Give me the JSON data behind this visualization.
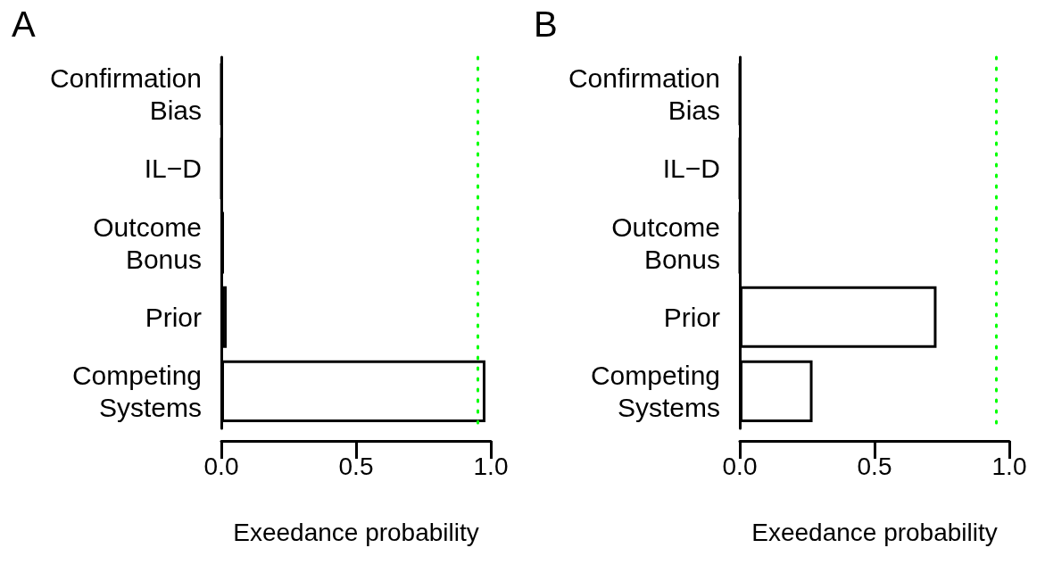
{
  "chart_data": [
    {
      "type": "bar",
      "title": "A",
      "orientation": "horizontal",
      "categories": [
        "Confirmation Bias",
        "IL−D",
        "Outcome Bonus",
        "Prior",
        "Competing Systems"
      ],
      "values": [
        0,
        0,
        0.01,
        0.02,
        0.98
      ],
      "color": "#ffffff",
      "xlabel": "Exeedance probability",
      "xlim": [
        0,
        1
      ],
      "xticks": [
        {
          "value": 0,
          "label": "0.0"
        },
        {
          "value": 0.5,
          "label": "0.5"
        },
        {
          "value": 1,
          "label": "1.0"
        }
      ],
      "ref_lines": [
        {
          "axis": "x",
          "value": 0.95,
          "color": "#00ff00",
          "line_style": "dotted"
        }
      ]
    },
    {
      "type": "bar",
      "title": "B",
      "orientation": "horizontal",
      "categories": [
        "Confirmation Bias",
        "IL−D",
        "Outcome Bonus",
        "Prior",
        "Competing Systems"
      ],
      "values": [
        0,
        0,
        0,
        0.73,
        0.27
      ],
      "color": "#ffffff",
      "xlabel": "Exeedance probability",
      "xlim": [
        0,
        1
      ],
      "xticks": [
        {
          "value": 0,
          "label": "0.0"
        },
        {
          "value": 0.5,
          "label": "0.5"
        },
        {
          "value": 1,
          "label": "1.0"
        }
      ],
      "ref_lines": [
        {
          "axis": "x",
          "value": 0.95,
          "color": "#00ff00",
          "line_style": "dotted"
        }
      ]
    }
  ]
}
